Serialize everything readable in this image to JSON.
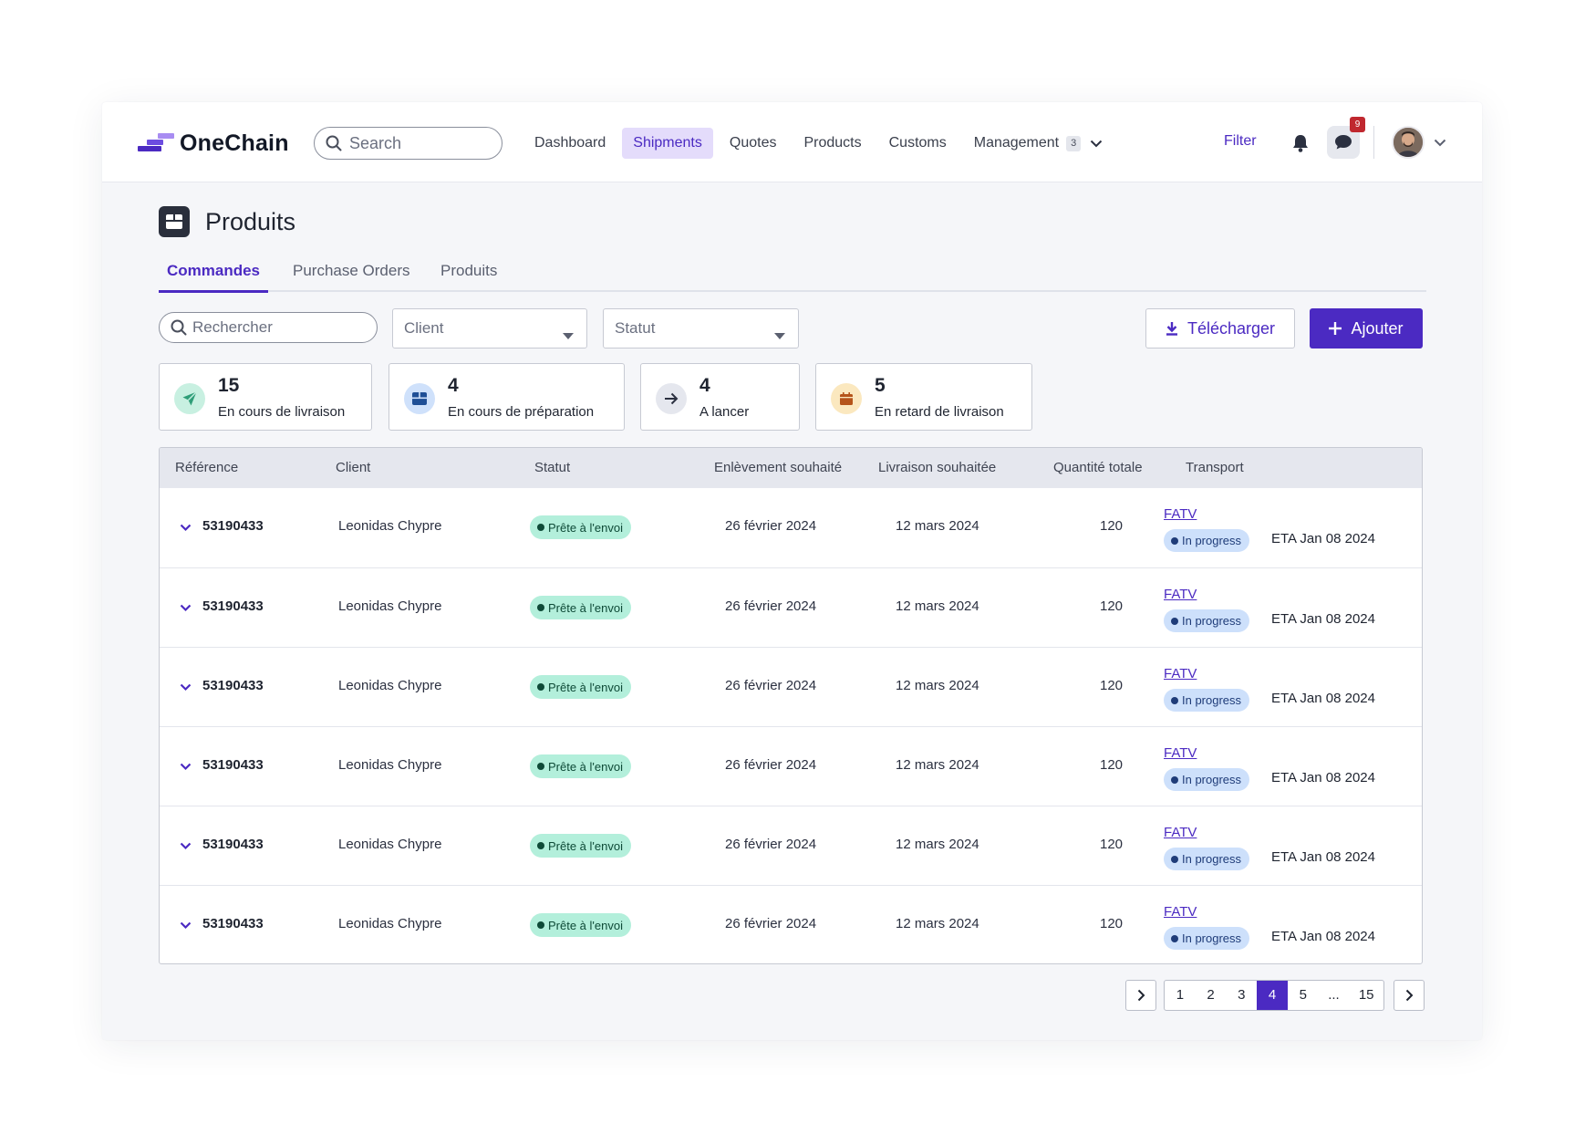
{
  "app": {
    "name": "OneChain",
    "colors": {
      "accent": "#4b2ac2",
      "accent_light": "#e4dcfb",
      "success_bg": "#b3efdb",
      "info_bg": "#cde0fb",
      "danger": "#c0282f"
    }
  },
  "nav": {
    "search_placeholder": "Search",
    "links": [
      "Dashboard",
      "Shipments",
      "Quotes",
      "Products",
      "Customs"
    ],
    "active_link": "Shipments",
    "management_label": "Management",
    "management_count": "3",
    "filter_label": "Filter",
    "chat_badge": "9"
  },
  "page": {
    "title": "Produits",
    "tabs": [
      "Commandes",
      "Purchase Orders",
      "Produits"
    ],
    "active_tab": "Commandes"
  },
  "filters": {
    "search_placeholder": "Rechercher",
    "client_placeholder": "Client",
    "status_placeholder": "Statut",
    "download_label": "Télécharger",
    "add_label": "Ajouter"
  },
  "stats": [
    {
      "value": "15",
      "label": "En cours de livraison",
      "icon": "paper-plane-icon",
      "color": "#2f9e78",
      "bg": "#c8f0e1"
    },
    {
      "value": "4",
      "label": "En cours de préparation",
      "icon": "box-icon",
      "color": "#1f4f96",
      "bg": "#cfe1fb"
    },
    {
      "value": "4",
      "label": "A lancer",
      "icon": "arrow-right-icon",
      "color": "#2b3040",
      "bg": "#e5e7ee"
    },
    {
      "value": "5",
      "label": "En retard de livraison",
      "icon": "calendar-icon",
      "color": "#b5541a",
      "bg": "#fbe8bf"
    }
  ],
  "table": {
    "headers": [
      "Référence",
      "Client",
      "Statut",
      "Enlèvement souhaité",
      "Livraison souhaitée",
      "Quantité totale",
      "Transport"
    ],
    "rows": [
      {
        "ref": "53190433",
        "client": "Leonidas Chypre",
        "status": "Prête à l'envoi",
        "pickup": "26 février 2024",
        "delivery": "12 mars 2024",
        "qty": "120",
        "carrier": "FATV",
        "transport_status": "In progress",
        "eta": "ETA Jan 08 2024"
      },
      {
        "ref": "53190433",
        "client": "Leonidas Chypre",
        "status": "Prête à l'envoi",
        "pickup": "26 février 2024",
        "delivery": "12 mars 2024",
        "qty": "120",
        "carrier": "FATV",
        "transport_status": "In progress",
        "eta": "ETA Jan 08 2024"
      },
      {
        "ref": "53190433",
        "client": "Leonidas Chypre",
        "status": "Prête à l'envoi",
        "pickup": "26 février 2024",
        "delivery": "12 mars 2024",
        "qty": "120",
        "carrier": "FATV",
        "transport_status": "In progress",
        "eta": "ETA Jan 08 2024"
      },
      {
        "ref": "53190433",
        "client": "Leonidas Chypre",
        "status": "Prête à l'envoi",
        "pickup": "26 février 2024",
        "delivery": "12 mars 2024",
        "qty": "120",
        "carrier": "FATV",
        "transport_status": "In progress",
        "eta": "ETA Jan 08 2024"
      },
      {
        "ref": "53190433",
        "client": "Leonidas Chypre",
        "status": "Prête à l'envoi",
        "pickup": "26 février 2024",
        "delivery": "12 mars 2024",
        "qty": "120",
        "carrier": "FATV",
        "transport_status": "In progress",
        "eta": "ETA Jan 08 2024"
      },
      {
        "ref": "53190433",
        "client": "Leonidas Chypre",
        "status": "Prête à l'envoi",
        "pickup": "26 février 2024",
        "delivery": "12 mars 2024",
        "qty": "120",
        "carrier": "FATV",
        "transport_status": "In progress",
        "eta": "ETA Jan 08 2024"
      }
    ]
  },
  "pagination": {
    "pages": [
      "1",
      "2",
      "3",
      "4",
      "5",
      "...",
      "15"
    ],
    "current": "4"
  }
}
